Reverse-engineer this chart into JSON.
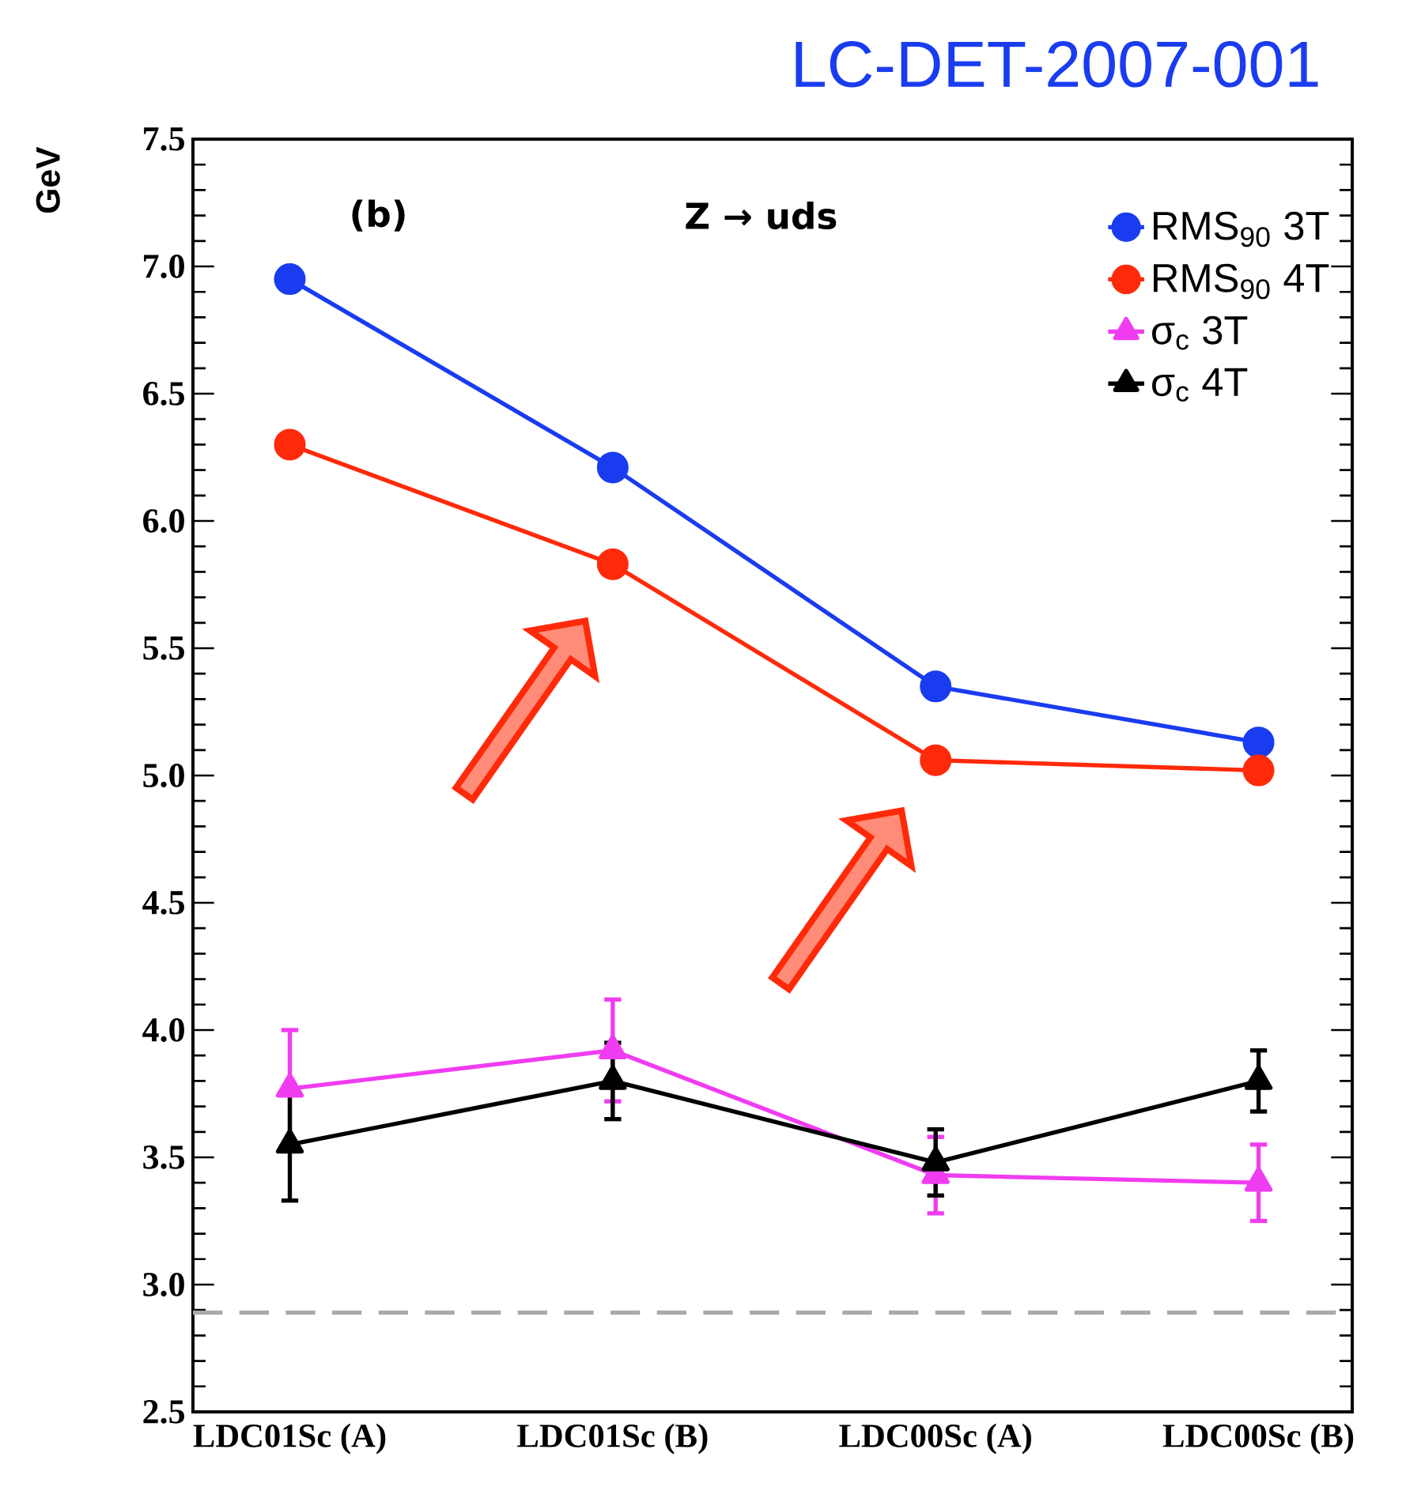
{
  "chart_data": {
    "type": "line",
    "title": "LC-DET-2007-001",
    "ylabel": "GeV",
    "annotations": [
      "(b)",
      "Z → uds"
    ],
    "categories": [
      "LDC01Sc (A)",
      "LDC01Sc (B)",
      "LDC00Sc (A)",
      "LDC00Sc (B)"
    ],
    "series": [
      {
        "name": "RMS$_{90}$ 3T",
        "color": "#1a3cf0",
        "marker": "circle",
        "values": [
          6.95,
          6.21,
          5.35,
          5.13
        ]
      },
      {
        "name": "RMS$_{90}$ 4T",
        "color": "#ff2a0a",
        "marker": "circle",
        "values": [
          6.3,
          5.83,
          5.06,
          5.02
        ]
      },
      {
        "name": "σ$_{c}$ 3T",
        "color": "#f03cf0",
        "marker": "triangle",
        "values": [
          3.77,
          3.92,
          3.43,
          3.4
        ],
        "errors": [
          0.23,
          0.2,
          0.15,
          0.15
        ]
      },
      {
        "name": "σ$_{c}$ 4T",
        "color": "#000000",
        "marker": "triangle",
        "values": [
          3.55,
          3.8,
          3.48,
          3.8
        ],
        "errors": [
          0.22,
          0.15,
          0.13,
          0.12
        ]
      }
    ],
    "ylim": [
      2.5,
      7.5
    ],
    "yticks": [
      {
        "value": 2.5,
        "label": "2.5"
      },
      {
        "value": 3,
        "label": "3.0"
      },
      {
        "value": 3.5,
        "label": "3.5"
      },
      {
        "value": 4,
        "label": "4.0"
      },
      {
        "value": 4.5,
        "label": "4.5"
      },
      {
        "value": 5,
        "label": "5.0"
      },
      {
        "value": 5.5,
        "label": "5.5"
      },
      {
        "value": 6,
        "label": "6.0"
      },
      {
        "value": 6.5,
        "label": "6.5"
      },
      {
        "value": 7,
        "label": "7.0"
      },
      {
        "value": 7.5,
        "label": "7.5"
      }
    ],
    "ref_lines": [
      {
        "axis": "y",
        "value": 2.89,
        "color": "#aaaaaa",
        "line_style": "dashed"
      }
    ],
    "legend": "top right",
    "line_style": "solid"
  }
}
